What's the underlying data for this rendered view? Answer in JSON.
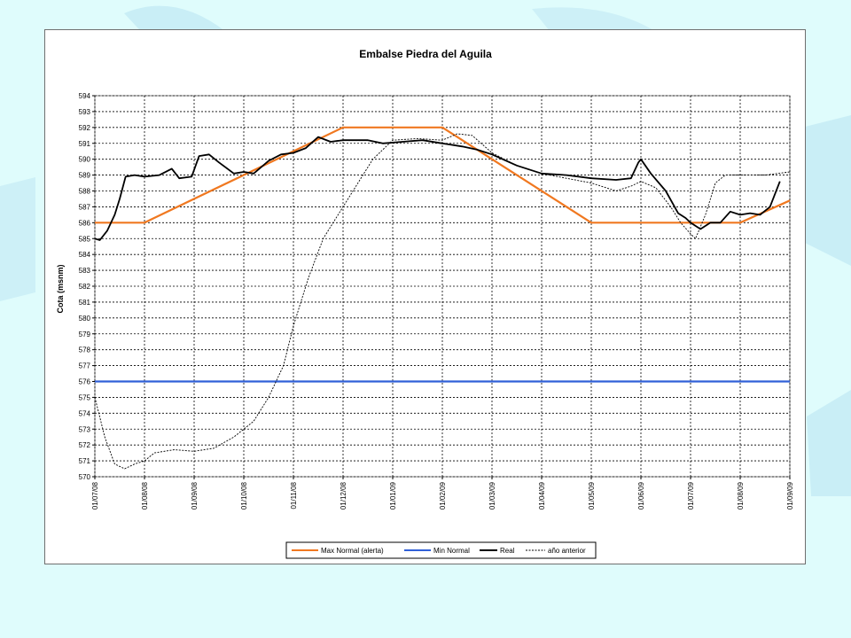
{
  "chart_data": {
    "type": "line",
    "title": "Embalse Piedra del Aguila",
    "ylabel": "Cota (msnm)",
    "xlabel": "",
    "ylim": [
      570,
      594
    ],
    "yticks": [
      570,
      571,
      572,
      573,
      574,
      575,
      576,
      577,
      578,
      579,
      580,
      581,
      582,
      583,
      584,
      585,
      586,
      587,
      588,
      589,
      590,
      591,
      592,
      593,
      594
    ],
    "x_ticks": [
      "01/07/08",
      "01/08/08",
      "01/09/08",
      "01/10/08",
      "01/11/08",
      "01/12/08",
      "01/01/09",
      "01/02/09",
      "01/03/09",
      "01/04/09",
      "01/05/09",
      "01/06/09",
      "01/07/09",
      "01/08/09",
      "01/09/09"
    ],
    "grid": true,
    "legend_position": "bottom",
    "colors": {
      "max_normal": "#f07820",
      "min_normal": "#3060d8",
      "real": "#000000",
      "anio_anterior": "#000000"
    },
    "series": [
      {
        "name": "Max Normal (alerta)",
        "style": "solid",
        "points": [
          [
            0,
            586
          ],
          [
            1,
            586
          ],
          [
            5,
            592
          ],
          [
            7,
            592
          ],
          [
            10,
            586
          ],
          [
            12,
            586
          ],
          [
            13,
            586
          ],
          [
            14,
            587.4
          ]
        ]
      },
      {
        "name": "Min Normal",
        "style": "solid",
        "points": [
          [
            0,
            576
          ],
          [
            14,
            576
          ]
        ]
      },
      {
        "name": "Real",
        "style": "solid",
        "points": [
          [
            0,
            585
          ],
          [
            0.1,
            584.9
          ],
          [
            0.25,
            585.5
          ],
          [
            0.4,
            586.5
          ],
          [
            0.5,
            587.5
          ],
          [
            0.62,
            588.9
          ],
          [
            0.8,
            589
          ],
          [
            1,
            588.9
          ],
          [
            1.3,
            589
          ],
          [
            1.55,
            589.4
          ],
          [
            1.7,
            588.8
          ],
          [
            1.95,
            588.9
          ],
          [
            2.1,
            590.2
          ],
          [
            2.3,
            590.3
          ],
          [
            2.5,
            589.8
          ],
          [
            2.8,
            589.1
          ],
          [
            3,
            589.2
          ],
          [
            3.2,
            589.1
          ],
          [
            3.5,
            589.9
          ],
          [
            3.75,
            590.3
          ],
          [
            4,
            590.4
          ],
          [
            4.25,
            590.7
          ],
          [
            4.5,
            591.4
          ],
          [
            4.75,
            591.1
          ],
          [
            5,
            591.2
          ],
          [
            5.5,
            591.2
          ],
          [
            5.8,
            591
          ],
          [
            6.2,
            591.1
          ],
          [
            6.6,
            591.2
          ],
          [
            7,
            591
          ],
          [
            7.4,
            590.8
          ],
          [
            7.7,
            590.6
          ],
          [
            8,
            590.3
          ],
          [
            8.5,
            589.6
          ],
          [
            9,
            589.1
          ],
          [
            9.5,
            589
          ],
          [
            10,
            588.8
          ],
          [
            10.5,
            588.7
          ],
          [
            10.8,
            588.8
          ],
          [
            10.95,
            589.8
          ],
          [
            11,
            590
          ],
          [
            11.2,
            589.1
          ],
          [
            11.5,
            588
          ],
          [
            11.75,
            586.6
          ],
          [
            11.9,
            586.3
          ],
          [
            12,
            586
          ],
          [
            12.2,
            585.6
          ],
          [
            12.4,
            586
          ],
          [
            12.6,
            586
          ],
          [
            12.8,
            586.7
          ],
          [
            13,
            586.5
          ],
          [
            13.2,
            586.6
          ],
          [
            13.4,
            586.5
          ],
          [
            13.6,
            587
          ],
          [
            13.8,
            588.6
          ]
        ]
      },
      {
        "name": "año anterior",
        "style": "dotted",
        "points": [
          [
            0,
            575
          ],
          [
            0.2,
            572.5
          ],
          [
            0.4,
            570.8
          ],
          [
            0.6,
            570.5
          ],
          [
            0.8,
            570.8
          ],
          [
            1,
            571
          ],
          [
            1.2,
            571.5
          ],
          [
            1.6,
            571.7
          ],
          [
            2,
            571.6
          ],
          [
            2.4,
            571.8
          ],
          [
            2.8,
            572.5
          ],
          [
            3.2,
            573.5
          ],
          [
            3.5,
            575
          ],
          [
            3.8,
            577
          ],
          [
            4,
            579.5
          ],
          [
            4.3,
            582.5
          ],
          [
            4.6,
            585
          ],
          [
            5,
            587
          ],
          [
            5.3,
            588.5
          ],
          [
            5.6,
            590
          ],
          [
            6,
            591.2
          ],
          [
            6.5,
            591.3
          ],
          [
            7,
            591.2
          ],
          [
            7.3,
            591.6
          ],
          [
            7.6,
            591.5
          ],
          [
            8,
            590.4
          ],
          [
            8.5,
            589.6
          ],
          [
            9,
            589.1
          ],
          [
            9.5,
            588.8
          ],
          [
            10,
            588.5
          ],
          [
            10.5,
            588
          ],
          [
            10.8,
            588.3
          ],
          [
            11,
            588.6
          ],
          [
            11.3,
            588.2
          ],
          [
            11.6,
            587
          ],
          [
            11.8,
            586
          ],
          [
            12,
            585.3
          ],
          [
            12.1,
            585
          ],
          [
            12.3,
            586.5
          ],
          [
            12.5,
            588.5
          ],
          [
            12.7,
            589
          ],
          [
            13,
            589
          ],
          [
            13.5,
            589
          ],
          [
            14,
            589.2
          ]
        ]
      }
    ]
  }
}
